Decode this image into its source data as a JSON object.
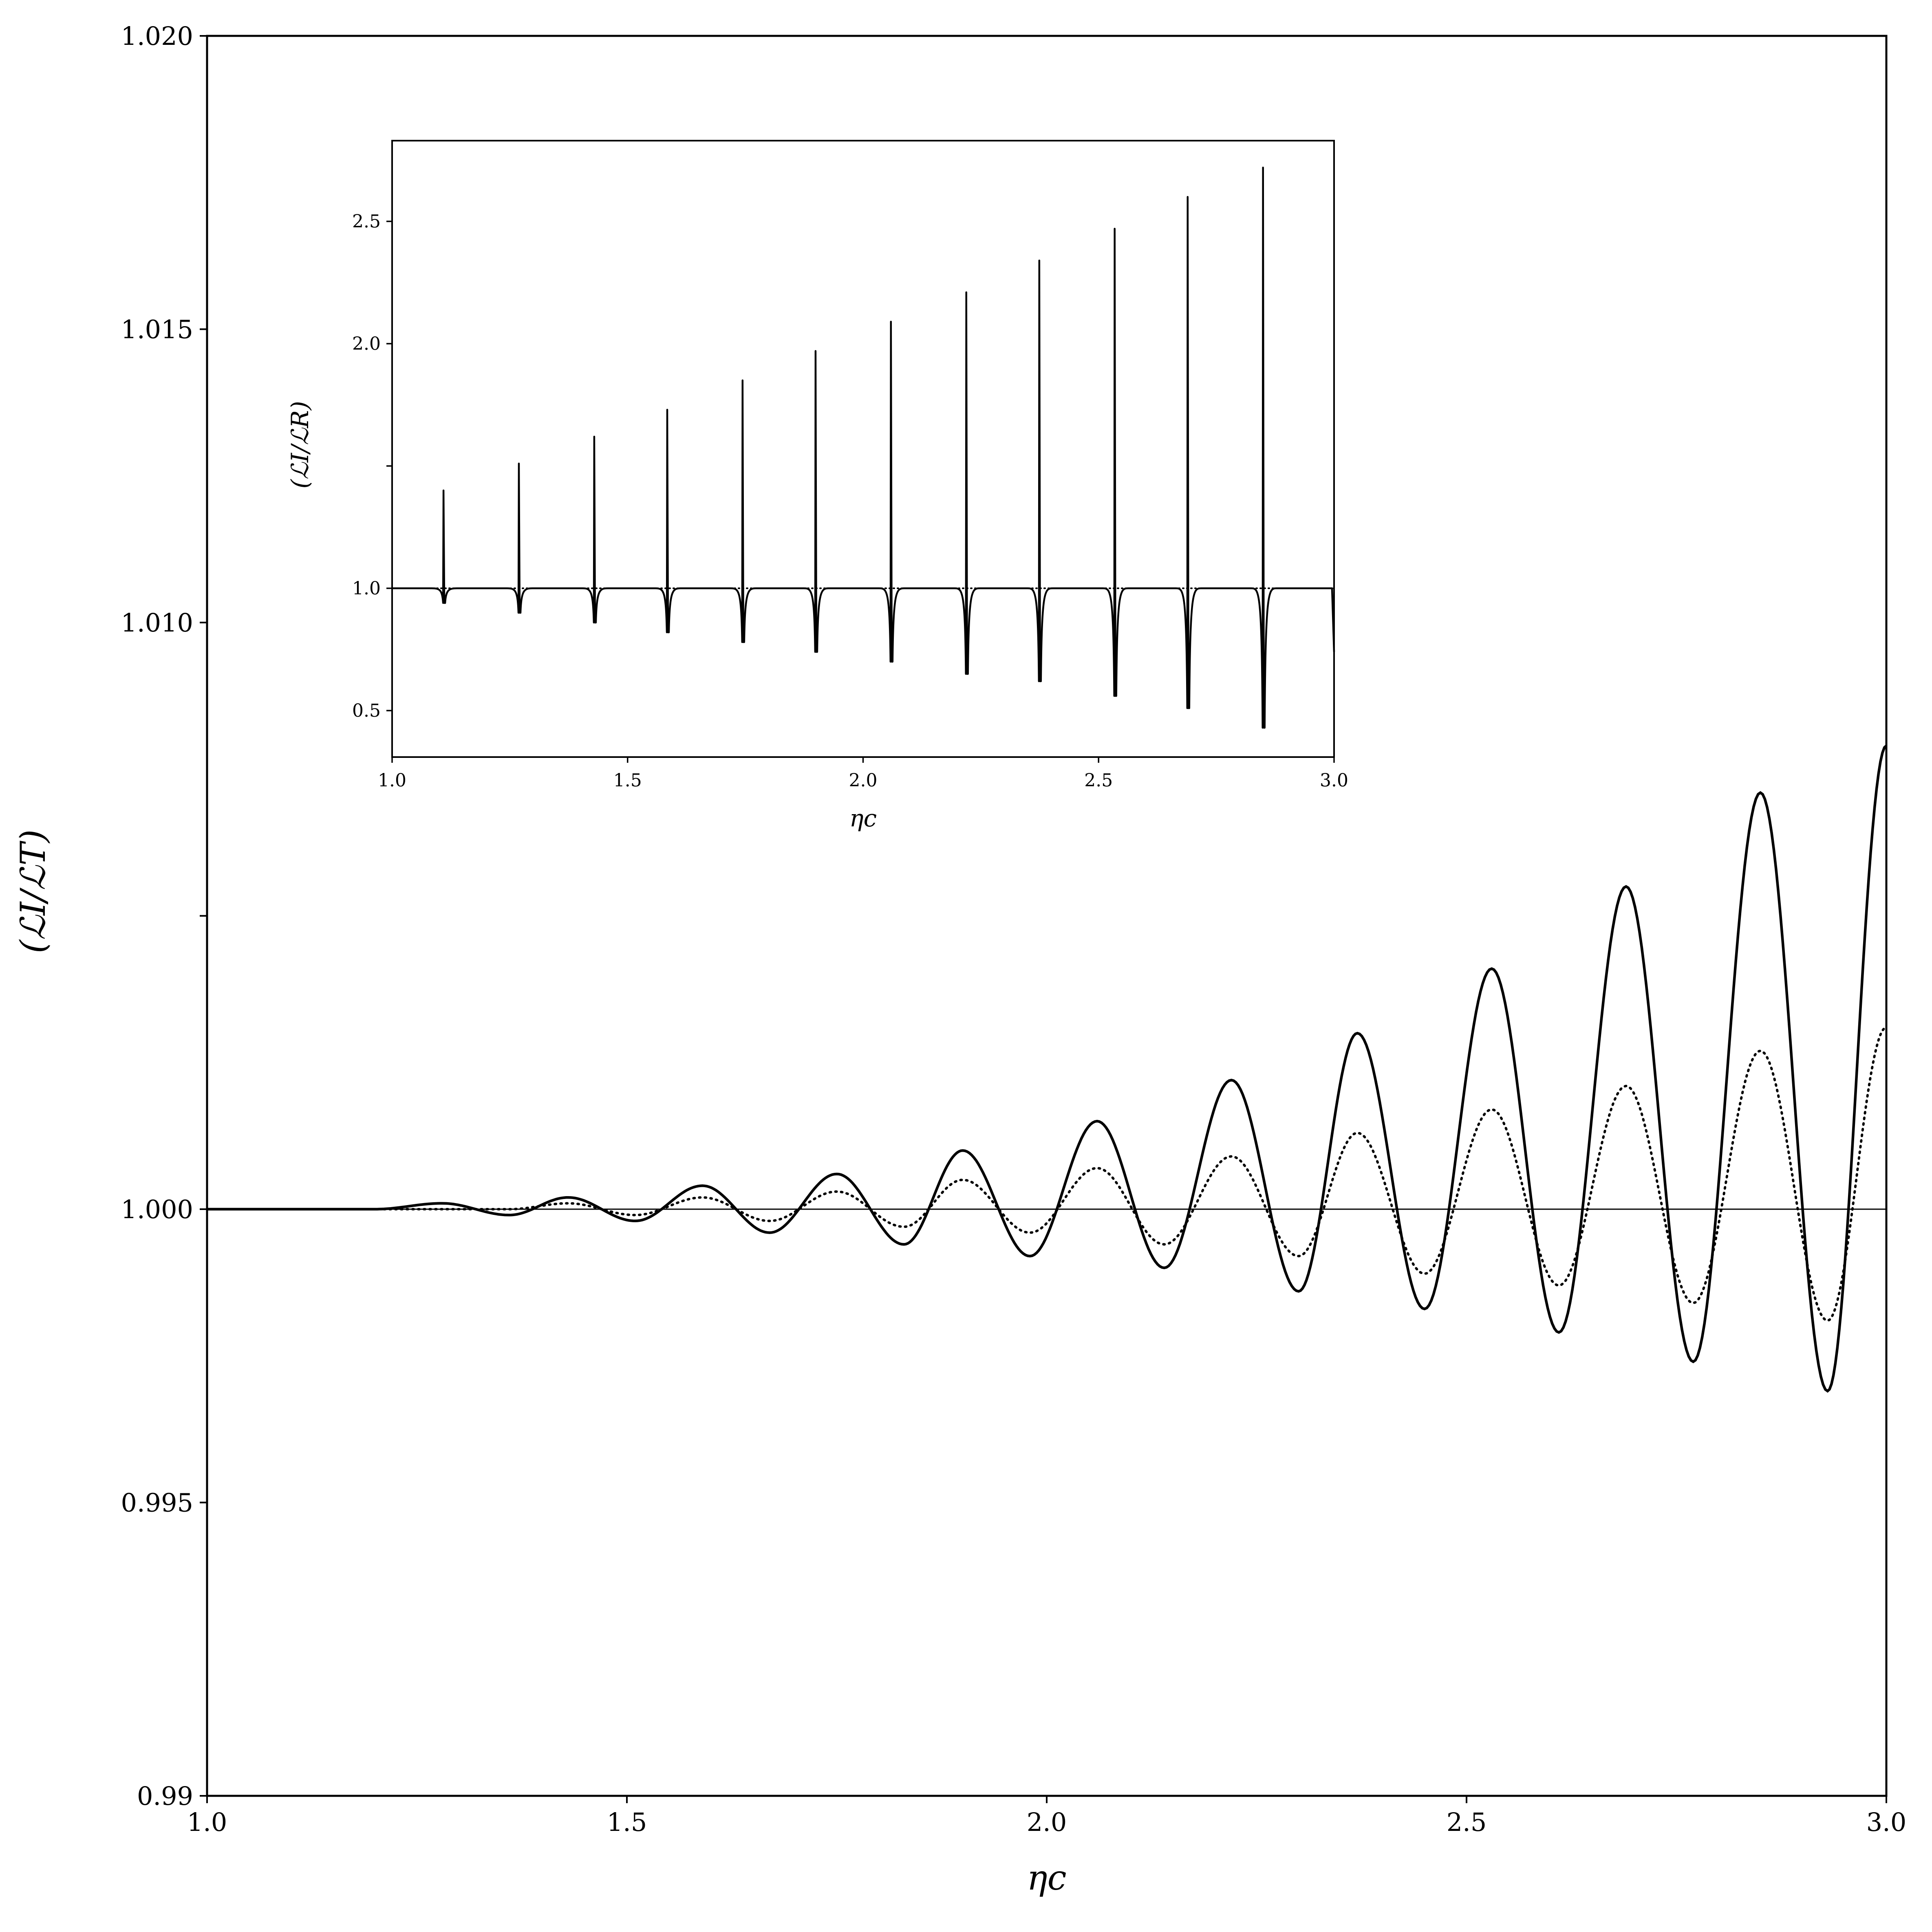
{
  "chart_data": [
    {
      "type": "line",
      "panel": "main",
      "xlabel": "ηc",
      "ylabel": "(ℒI/ℒT)",
      "xlim": [
        1.0,
        3.0
      ],
      "ylim": [
        0.99,
        1.02
      ],
      "xticks": [
        "1.0",
        "1.5",
        "2.0",
        "2.5",
        "3.0"
      ],
      "yticks": [
        "0.99",
        "0.995",
        "1.000",
        "1.010",
        "1.015",
        "1.020"
      ],
      "reference_line": 1.0,
      "grid": false,
      "series": [
        {
          "style": "solid",
          "x": [
            1.0,
            1.1,
            1.2,
            1.28,
            1.36,
            1.43,
            1.51,
            1.59,
            1.67,
            1.75,
            1.83,
            1.9,
            1.98,
            2.06,
            2.14,
            2.22,
            2.3,
            2.37,
            2.45,
            2.53,
            2.61,
            2.69,
            2.77,
            2.85,
            2.93,
            3.0
          ],
          "y": [
            1.0,
            1.0,
            1.0,
            1.0001,
            0.9999,
            1.0002,
            0.9998,
            1.0004,
            0.9996,
            1.0006,
            0.9994,
            1.001,
            0.9992,
            1.0015,
            0.999,
            1.0022,
            0.9986,
            1.003,
            0.9983,
            1.0041,
            0.9979,
            1.0055,
            0.9974,
            1.0071,
            0.9969,
            1.0079
          ]
        },
        {
          "style": "dotted",
          "x": [
            1.0,
            1.1,
            1.2,
            1.28,
            1.36,
            1.43,
            1.51,
            1.59,
            1.67,
            1.75,
            1.83,
            1.9,
            1.98,
            2.06,
            2.14,
            2.22,
            2.3,
            2.37,
            2.45,
            2.53,
            2.61,
            2.69,
            2.77,
            2.85,
            2.93,
            3.0
          ],
          "y": [
            1.0,
            1.0,
            1.0,
            1.0,
            1.0,
            1.0001,
            0.9999,
            1.0002,
            0.9998,
            1.0003,
            0.9997,
            1.0005,
            0.9996,
            1.0007,
            0.9994,
            1.0009,
            0.9992,
            1.0013,
            0.9989,
            1.0017,
            0.9987,
            1.0021,
            0.9984,
            1.0027,
            0.9981,
            1.0031
          ]
        }
      ]
    },
    {
      "type": "line",
      "panel": "inset",
      "xlabel": "ηc",
      "ylabel": "(ℒI/ℒR)",
      "xlim": [
        1.0,
        3.0
      ],
      "ylim": [
        0.31,
        2.83
      ],
      "xticks": [
        "1.0",
        "1.5",
        "2.0",
        "2.5",
        "3.0"
      ],
      "yticks": [
        "0.5",
        "1.0",
        "2.0",
        "2.5"
      ],
      "minor_ytick": 1.5,
      "grid": false,
      "baseline": 1.0,
      "spikes": {
        "x": [
          1.11,
          1.27,
          1.43,
          1.585,
          1.745,
          1.9,
          2.06,
          2.22,
          2.375,
          2.535,
          2.69,
          2.85
        ],
        "peak": [
          1.4,
          1.51,
          1.62,
          1.73,
          1.85,
          1.97,
          2.09,
          2.21,
          2.34,
          2.47,
          2.6,
          2.72
        ],
        "dip": [
          0.94,
          0.9,
          0.86,
          0.82,
          0.78,
          0.74,
          0.7,
          0.65,
          0.62,
          0.56,
          0.51,
          0.43
        ]
      }
    }
  ]
}
